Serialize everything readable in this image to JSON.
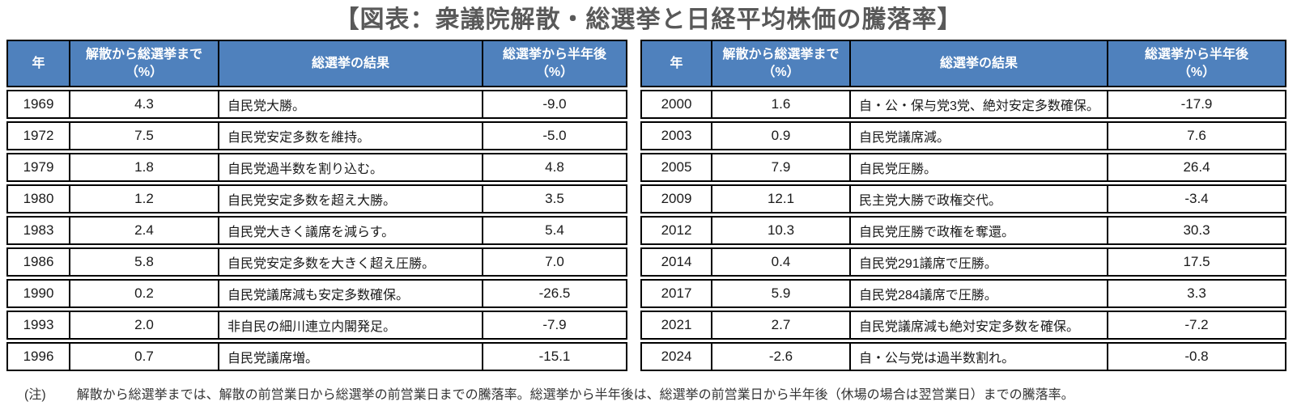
{
  "title": "【図表：衆議院解散・総選挙と日経平均株価の騰落率】",
  "header": {
    "year": "年",
    "dissolution_to_election": "解散から総選挙まで\n（%）",
    "election_result": "総選挙の結果",
    "half_year_after": "総選挙から半年後\n（%）"
  },
  "note_label": "(注)",
  "note_text": "解散から総選挙までは、解散の前営業日から総選挙の前営業日までの騰落率。総選挙から半年後は、総選挙の前営業日から半年後（休場の場合は翌営業日）までの騰落率。",
  "colors": {
    "header_bg": "#4f81bd",
    "header_text": "#ffffff",
    "border": "#000000",
    "title_text": "#595959",
    "body_text": "#1a1a1a"
  },
  "chart_data": [
    {
      "type": "table",
      "title": "衆議院解散・総選挙と日経平均株価の騰落率（1969-1996）",
      "columns": [
        "年",
        "解散から総選挙まで（%）",
        "総選挙の結果",
        "総選挙から半年後（%）"
      ],
      "rows": [
        [
          "1969",
          "4.3",
          "自民党大勝。",
          "-9.0"
        ],
        [
          "1972",
          "7.5",
          "自民党安定多数を維持。",
          "-5.0"
        ],
        [
          "1979",
          "1.8",
          "自民党過半数を割り込む。",
          "4.8"
        ],
        [
          "1980",
          "1.2",
          "自民党安定多数を超え大勝。",
          "3.5"
        ],
        [
          "1983",
          "2.4",
          "自民党大きく議席を減らす。",
          "5.4"
        ],
        [
          "1986",
          "5.8",
          "自民党安定多数を大きく超え圧勝。",
          "7.0"
        ],
        [
          "1990",
          "0.2",
          "自民党議席減も安定多数確保。",
          "-26.5"
        ],
        [
          "1993",
          "2.0",
          "非自民の細川連立内閣発足。",
          "-7.9"
        ],
        [
          "1996",
          "0.7",
          "自民党議席増。",
          "-15.1"
        ]
      ]
    },
    {
      "type": "table",
      "title": "衆議院解散・総選挙と日経平均株価の騰落率（2000-2024）",
      "columns": [
        "年",
        "解散から総選挙まで（%）",
        "総選挙の結果",
        "総選挙から半年後（%）"
      ],
      "rows": [
        [
          "2000",
          "1.6",
          "自・公・保与党3党、絶対安定多数確保。",
          "-17.9"
        ],
        [
          "2003",
          "0.9",
          "自民党議席減。",
          "7.6"
        ],
        [
          "2005",
          "7.9",
          "自民党圧勝。",
          "26.4"
        ],
        [
          "2009",
          "12.1",
          "民主党大勝で政権交代。",
          "-3.4"
        ],
        [
          "2012",
          "10.3",
          "自民党圧勝で政権を奪還。",
          "30.3"
        ],
        [
          "2014",
          "0.4",
          "自民党291議席で圧勝。",
          "17.5"
        ],
        [
          "2017",
          "5.9",
          "自民党284議席で圧勝。",
          "3.3"
        ],
        [
          "2021",
          "2.7",
          "自民党議席減も絶対安定多数を確保。",
          "-7.2"
        ],
        [
          "2024",
          "-2.6",
          "自・公与党は過半数割れ。",
          "-0.8"
        ]
      ]
    }
  ]
}
